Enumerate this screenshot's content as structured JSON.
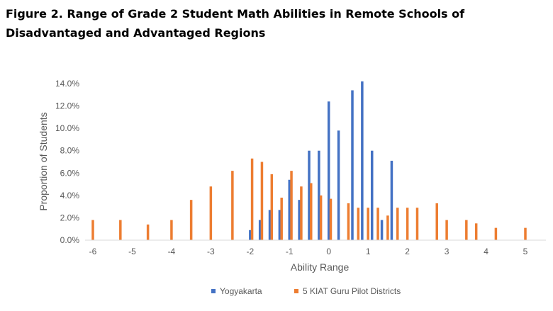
{
  "figure": {
    "title": "Figure 2. Range of Grade 2 Student Math Abilities in Remote Schools of Disadvantaged and Advantaged Regions"
  },
  "chart_data": {
    "type": "bar",
    "xlabel": "Ability Range",
    "ylabel": "Proportion of Students",
    "xlim": [
      -6.2,
      5.5
    ],
    "ylim": [
      0,
      0.14
    ],
    "x_ticks": [
      -6,
      -5,
      -4,
      -3,
      -2,
      -1,
      0,
      1,
      2,
      3,
      4,
      5
    ],
    "x_tick_labels": [
      "-6",
      "-5",
      "-4",
      "-3",
      "-2",
      "-1",
      "0",
      "1",
      "2",
      "3",
      "4",
      "5"
    ],
    "y_ticks": [
      0,
      0.02,
      0.04,
      0.06,
      0.08,
      0.1,
      0.12,
      0.14
    ],
    "y_tick_labels": [
      "0.0%",
      "2.0%",
      "4.0%",
      "6.0%",
      "8.0%",
      "10.0%",
      "12.0%",
      "14.0%"
    ],
    "grid": false,
    "legend_position": "bottom",
    "series": [
      {
        "name": "Yogyakarta",
        "color": "#4472C4",
        "points": [
          {
            "x": -2.0,
            "y": 0.009
          },
          {
            "x": -1.75,
            "y": 0.018
          },
          {
            "x": -1.5,
            "y": 0.027
          },
          {
            "x": -1.25,
            "y": 0.027
          },
          {
            "x": -1.0,
            "y": 0.054
          },
          {
            "x": -0.75,
            "y": 0.036
          },
          {
            "x": -0.5,
            "y": 0.08
          },
          {
            "x": -0.25,
            "y": 0.08
          },
          {
            "x": 0.0,
            "y": 0.124
          },
          {
            "x": 0.25,
            "y": 0.098
          },
          {
            "x": 0.6,
            "y": 0.134
          },
          {
            "x": 0.85,
            "y": 0.142
          },
          {
            "x": 1.1,
            "y": 0.08
          },
          {
            "x": 1.35,
            "y": 0.018
          },
          {
            "x": 1.6,
            "y": 0.071
          }
        ]
      },
      {
        "name": "5 KIAT Guru Pilot Districts",
        "color": "#ED7D31",
        "points": [
          {
            "x": -6.0,
            "y": 0.018
          },
          {
            "x": -5.3,
            "y": 0.018
          },
          {
            "x": -4.6,
            "y": 0.014
          },
          {
            "x": -4.0,
            "y": 0.018
          },
          {
            "x": -3.5,
            "y": 0.036
          },
          {
            "x": -3.0,
            "y": 0.048
          },
          {
            "x": -2.45,
            "y": 0.062
          },
          {
            "x": -1.95,
            "y": 0.073
          },
          {
            "x": -1.7,
            "y": 0.07
          },
          {
            "x": -1.45,
            "y": 0.059
          },
          {
            "x": -1.2,
            "y": 0.038
          },
          {
            "x": -0.95,
            "y": 0.062
          },
          {
            "x": -0.7,
            "y": 0.048
          },
          {
            "x": -0.45,
            "y": 0.051
          },
          {
            "x": -0.2,
            "y": 0.04
          },
          {
            "x": 0.05,
            "y": 0.037
          },
          {
            "x": 0.5,
            "y": 0.033
          },
          {
            "x": 0.75,
            "y": 0.029
          },
          {
            "x": 1.0,
            "y": 0.029
          },
          {
            "x": 1.25,
            "y": 0.029
          },
          {
            "x": 1.5,
            "y": 0.022
          },
          {
            "x": 1.75,
            "y": 0.029
          },
          {
            "x": 2.0,
            "y": 0.029
          },
          {
            "x": 2.25,
            "y": 0.029
          },
          {
            "x": 2.75,
            "y": 0.033
          },
          {
            "x": 3.0,
            "y": 0.018
          },
          {
            "x": 3.5,
            "y": 0.018
          },
          {
            "x": 3.75,
            "y": 0.015
          },
          {
            "x": 4.25,
            "y": 0.011
          },
          {
            "x": 5.0,
            "y": 0.011
          }
        ]
      }
    ]
  }
}
